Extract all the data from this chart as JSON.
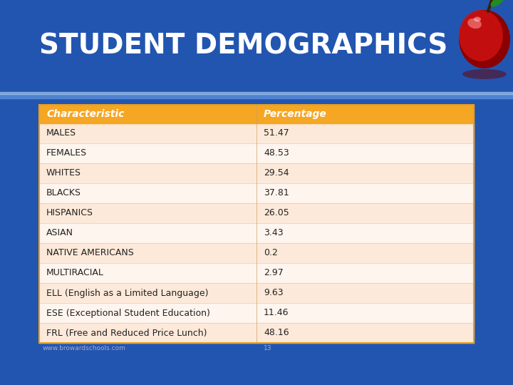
{
  "title": "STUDENT DEMOGRAPHICS",
  "title_color": "#FFFFFF",
  "bg_color": "#2255B0",
  "header_bg": "#F5A623",
  "header_text_color": "#FFFFFF",
  "table_bg_odd": "#FDE9D9",
  "table_bg_even": "#FEF5EE",
  "table_border_color": "#F5A623",
  "table_outer_border": "#E8A020",
  "columns": [
    "Characteristic",
    "Percentage"
  ],
  "rows": [
    [
      "MALES",
      "51.47"
    ],
    [
      "FEMALES",
      "48.53"
    ],
    [
      "WHITES",
      "29.54"
    ],
    [
      "BLACKS",
      "37.81"
    ],
    [
      "HISPANICS",
      "26.05"
    ],
    [
      "ASIAN",
      "3.43"
    ],
    [
      "NATIVE AMERICANS",
      "0.2"
    ],
    [
      "MULTIRACIAL",
      "2.97"
    ],
    [
      "ELL (English as a Limited Language)",
      "9.63"
    ],
    [
      "ESE (Exceptional Student Education)",
      "11.46"
    ],
    [
      "FRL (Free and Reduced Price Lunch)",
      "48.16"
    ]
  ],
  "footer_text": "www.browardschools.com",
  "footer_page": "13",
  "divider_color": "#7BAEE0",
  "title_fontsize": 28,
  "header_fontsize": 10,
  "row_fontsize": 9,
  "footer_fontsize": 6.5
}
